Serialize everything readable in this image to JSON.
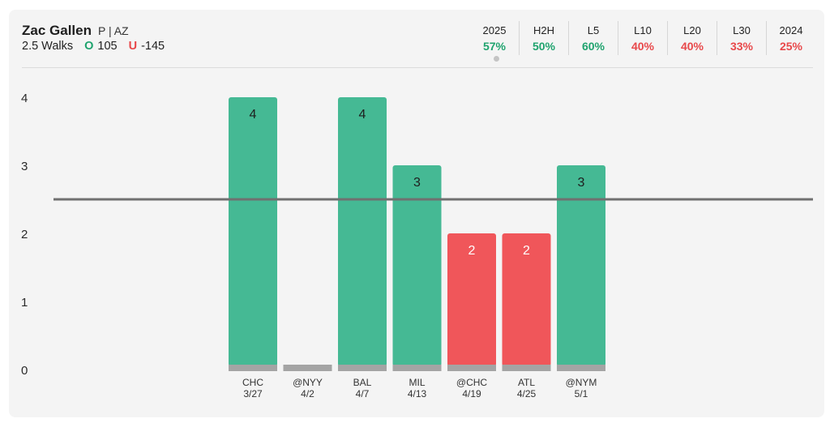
{
  "header": {
    "player_name": "Zac Gallen",
    "player_info": "P | AZ",
    "line_label": "2.5 Walks",
    "over_mark": "O",
    "over_odds": "105",
    "under_mark": "U",
    "under_odds": "-145"
  },
  "stats": [
    {
      "label": "2025",
      "value": "57%",
      "status": "good",
      "selected": true
    },
    {
      "label": "H2H",
      "value": "50%",
      "status": "good",
      "selected": false
    },
    {
      "label": "L5",
      "value": "60%",
      "status": "good",
      "selected": false
    },
    {
      "label": "L10",
      "value": "40%",
      "status": "bad",
      "selected": false
    },
    {
      "label": "L20",
      "value": "40%",
      "status": "bad",
      "selected": false
    },
    {
      "label": "L30",
      "value": "33%",
      "status": "bad",
      "selected": false
    },
    {
      "label": "2024",
      "value": "25%",
      "status": "bad",
      "selected": false
    }
  ],
  "colors": {
    "over": "#45b994",
    "under": "#f0565a",
    "baseline": "#a4a4a4",
    "line": "#707070"
  },
  "chart_data": {
    "type": "bar",
    "categories": [
      "CHC",
      "@NYY",
      "BAL",
      "MIL",
      "@CHC",
      "ATL",
      "@NYM"
    ],
    "dates": [
      "3/27",
      "4/2",
      "4/7",
      "4/13",
      "4/19",
      "4/25",
      "5/1"
    ],
    "values": [
      4,
      0,
      4,
      3,
      2,
      2,
      3
    ],
    "value_labels": [
      "4",
      "",
      "4",
      "3",
      "2",
      "2",
      "3"
    ],
    "threshold": 2.5,
    "yticks": [
      "0",
      "1",
      "2",
      "3",
      "4"
    ],
    "ylim": [
      0,
      4
    ],
    "grid": false
  }
}
